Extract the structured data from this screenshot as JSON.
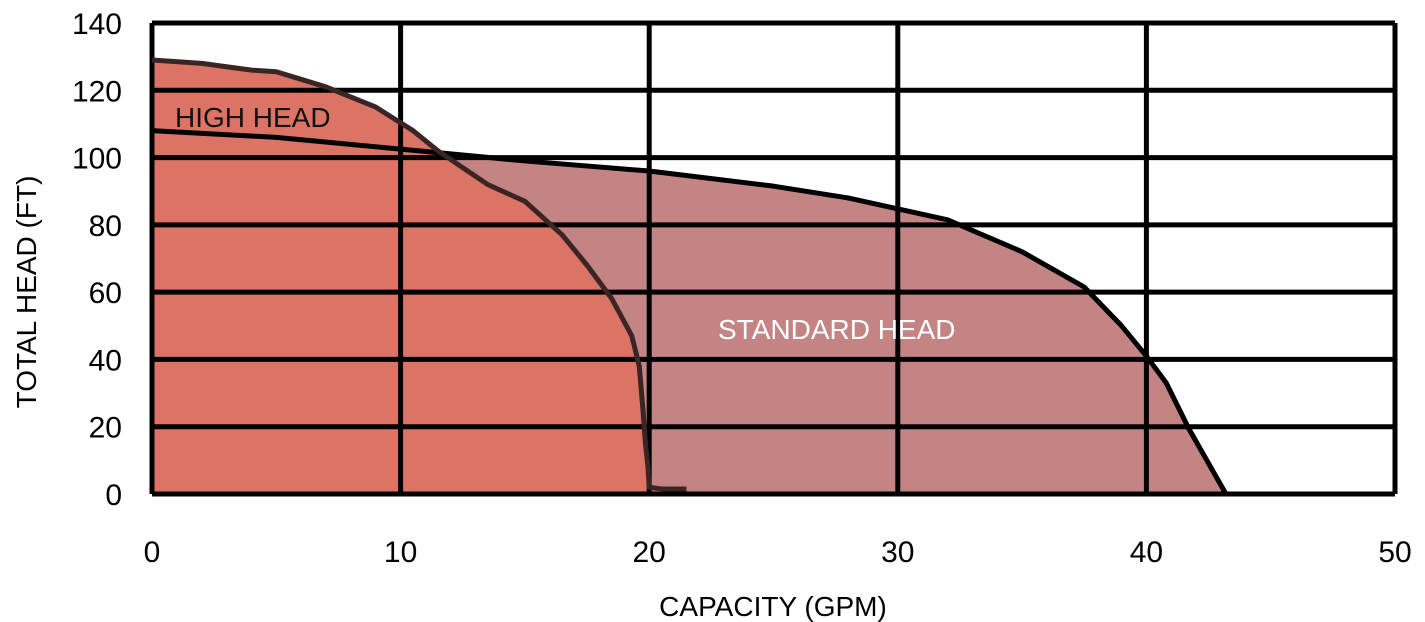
{
  "chart_data": {
    "type": "area",
    "xlabel": "CAPACITY (GPM)",
    "ylabel": "TOTAL HEAD (FT)",
    "xlim": [
      0,
      50
    ],
    "ylim": [
      0,
      140
    ],
    "xticks": [
      0,
      10,
      20,
      30,
      40,
      50
    ],
    "yticks": [
      0,
      20,
      40,
      60,
      80,
      100,
      120,
      140
    ],
    "grid": true,
    "series": [
      {
        "name": "STANDARD HEAD",
        "color": "#c48484",
        "x": [
          0,
          5,
          10,
          15,
          20,
          25,
          28,
          32,
          35,
          37.5,
          39,
          40,
          40.8,
          41.7,
          43.2
        ],
        "y": [
          108,
          106,
          102.5,
          99,
          96,
          91.5,
          88,
          81.5,
          72,
          61.5,
          50,
          41,
          33,
          19.5,
          0
        ]
      },
      {
        "name": "HIGH HEAD",
        "color": "#dc7466",
        "x": [
          0,
          2,
          4,
          5,
          7,
          9,
          10.5,
          11.5,
          12.5,
          13.5,
          15,
          16.5,
          17.5,
          18.5,
          19.3,
          19.6,
          19.75,
          19.85,
          19.95,
          20,
          20.5,
          21.5
        ],
        "y": [
          129,
          128,
          126,
          125.5,
          121,
          115,
          108,
          102,
          97,
          92,
          87,
          77,
          68,
          58,
          47,
          38,
          25,
          15,
          8,
          2,
          1.5,
          1.5
        ]
      }
    ]
  }
}
